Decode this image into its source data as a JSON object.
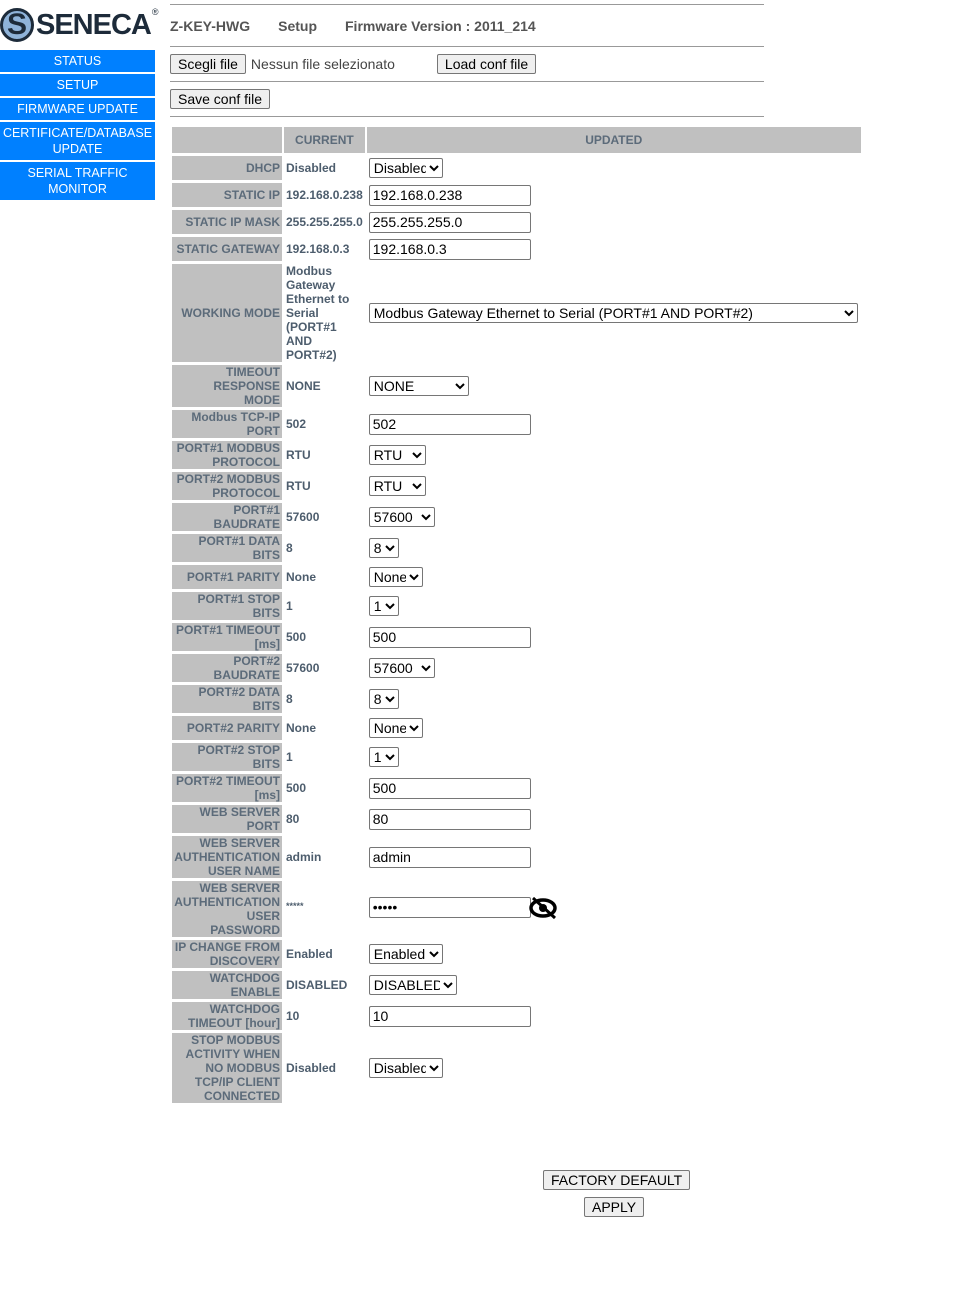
{
  "logo": "SENECA",
  "nav": [
    "STATUS",
    "SETUP",
    "FIRMWARE UPDATE",
    "CERTIFICATE/DATABASE UPDATE",
    "SERIAL TRAFFIC MONITOR"
  ],
  "header": {
    "device": "Z-KEY-HWG",
    "page": "Setup",
    "firmware": "Firmware Version : 2011_214"
  },
  "file": {
    "choose": "Scegli file",
    "none": "Nessun file selezionato",
    "load": "Load conf file",
    "save": "Save conf file"
  },
  "table": {
    "col_current": "CURRENT",
    "col_updated": "UPDATED"
  },
  "rows": [
    {
      "label": "DHCP",
      "current": "Disabled",
      "type": "select",
      "value": "Disabled"
    },
    {
      "label": "STATIC IP",
      "current": "192.168.0.238",
      "type": "text",
      "value": "192.168.0.238"
    },
    {
      "label": "STATIC IP MASK",
      "current": "255.255.255.0",
      "type": "text",
      "value": "255.255.255.0"
    },
    {
      "label": "STATIC GATEWAY",
      "current": "192.168.0.3",
      "type": "text",
      "value": "192.168.0.3"
    },
    {
      "label": "WORKING MODE",
      "current": "Modbus Gateway Ethernet to Serial (PORT#1 AND PORT#2)",
      "type": "select",
      "value": "Modbus Gateway Ethernet to Serial (PORT#1 AND PORT#2)",
      "wide": true
    },
    {
      "label": "TIMEOUT RESPONSE MODE",
      "current": "NONE",
      "type": "select",
      "value": "NONE"
    },
    {
      "label": "Modbus TCP-IP PORT",
      "current": "502",
      "type": "text",
      "value": "502"
    },
    {
      "label": "PORT#1 MODBUS PROTOCOL",
      "current": "RTU",
      "type": "select",
      "value": "RTU"
    },
    {
      "label": "PORT#2 MODBUS PROTOCOL",
      "current": "RTU",
      "type": "select",
      "value": "RTU"
    },
    {
      "label": "PORT#1 BAUDRATE",
      "current": "57600",
      "type": "select",
      "value": "57600"
    },
    {
      "label": "PORT#1 DATA BITS",
      "current": "8",
      "type": "select",
      "value": "8"
    },
    {
      "label": "PORT#1 PARITY",
      "current": "None",
      "type": "select",
      "value": "None"
    },
    {
      "label": "PORT#1 STOP BITS",
      "current": "1",
      "type": "select",
      "value": "1"
    },
    {
      "label": "PORT#1 TIMEOUT [ms]",
      "current": "500",
      "type": "text",
      "value": "500"
    },
    {
      "label": "PORT#2 BAUDRATE",
      "current": "57600",
      "type": "select",
      "value": "57600"
    },
    {
      "label": "PORT#2 DATA BITS",
      "current": "8",
      "type": "select",
      "value": "8"
    },
    {
      "label": "PORT#2 PARITY",
      "current": "None",
      "type": "select",
      "value": "None"
    },
    {
      "label": "PORT#2 STOP BITS",
      "current": "1",
      "type": "select",
      "value": "1"
    },
    {
      "label": "PORT#2 TIMEOUT [ms]",
      "current": "500",
      "type": "text",
      "value": "500"
    },
    {
      "label": "WEB SERVER PORT",
      "current": "80",
      "type": "text",
      "value": "80"
    },
    {
      "label": "WEB SERVER AUTHENTICATION USER NAME",
      "current": "admin",
      "type": "text",
      "value": "admin"
    },
    {
      "label": "WEB SERVER AUTHENTICATION USER PASSWORD",
      "current": "*****",
      "type": "password",
      "value": "*****"
    },
    {
      "label": "IP CHANGE FROM DISCOVERY",
      "current": "Enabled",
      "type": "select",
      "value": "Enabled"
    },
    {
      "label": "WATCHDOG ENABLE",
      "current": "DISABLED",
      "type": "select",
      "value": "DISABLED"
    },
    {
      "label": "WATCHDOG TIMEOUT [hour]",
      "current": "10",
      "type": "text",
      "value": "10"
    },
    {
      "label": "STOP MODBUS ACTIVITY WHEN NO MODBUS TCP/IP CLIENT CONNECTED",
      "current": "Disabled",
      "type": "select",
      "value": "Disabled"
    }
  ],
  "actions": {
    "factory": "FACTORY DEFAULT",
    "apply": "APPLY"
  }
}
